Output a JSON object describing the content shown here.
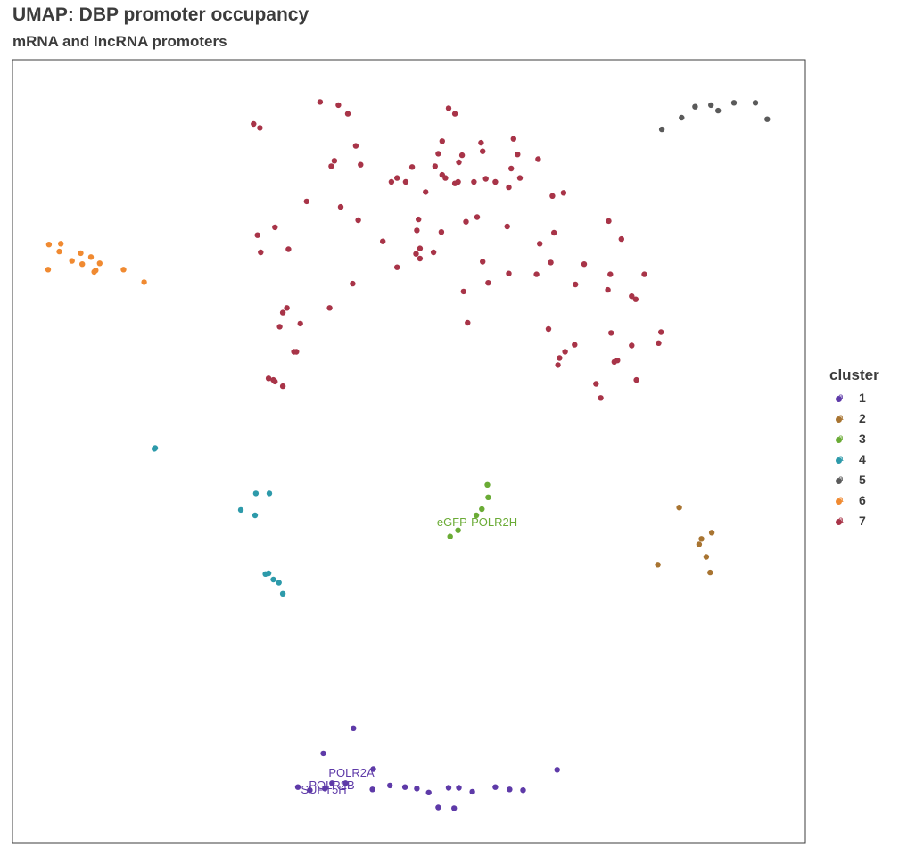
{
  "title": "UMAP: DBP promoter occupancy",
  "subtitle": "mRNA and lncRNA promoters",
  "legend": {
    "title": "cluster",
    "glyph": "a",
    "items": [
      {
        "label": "1",
        "color": "#5e3aa8"
      },
      {
        "label": "2",
        "color": "#a87431"
      },
      {
        "label": "3",
        "color": "#6aab35"
      },
      {
        "label": "4",
        "color": "#2d9aaa"
      },
      {
        "label": "5",
        "color": "#5a5a5a"
      },
      {
        "label": "6",
        "color": "#f08a31"
      },
      {
        "label": "7",
        "color": "#a83448"
      }
    ]
  },
  "chart_data": {
    "type": "scatter",
    "title": "UMAP: DBP promoter occupancy",
    "subtitle": "mRNA and lncRNA promoters",
    "xlabel": "",
    "ylabel": "",
    "axes_ticks": "none",
    "grid": false,
    "legend_position": "right",
    "xlim": [
      0,
      100
    ],
    "ylim": [
      0,
      100
    ],
    "series": [
      {
        "name": "1",
        "color": "#5e3aa8",
        "points": [
          [
            43,
            14.6
          ],
          [
            39.2,
            11.4
          ],
          [
            45.5,
            9.4
          ],
          [
            40.3,
            7.6
          ],
          [
            42,
            7.6
          ],
          [
            45.4,
            6.8
          ],
          [
            39.4,
            6.9
          ],
          [
            47.6,
            7.3
          ],
          [
            49.5,
            7.1
          ],
          [
            51,
            6.9
          ],
          [
            52.5,
            6.4
          ],
          [
            55,
            7
          ],
          [
            56.3,
            7
          ],
          [
            58,
            6.5
          ],
          [
            60.9,
            7.1
          ],
          [
            62.7,
            6.8
          ],
          [
            64.4,
            6.7
          ],
          [
            68.7,
            9.3
          ],
          [
            53.7,
            4.5
          ],
          [
            55.7,
            4.4
          ],
          [
            37.5,
            6.7
          ],
          [
            36,
            7.1
          ]
        ]
      },
      {
        "name": "2",
        "color": "#a87431"
      },
      {
        "name": "3",
        "color": "#6aab35"
      },
      {
        "name": "4",
        "color": "#2d9aaa"
      },
      {
        "name": "5",
        "color": "#5a5a5a"
      },
      {
        "name": "6",
        "color": "#f08a31"
      },
      {
        "name": "7",
        "color": "#a83448"
      }
    ],
    "clusters": [
      {
        "name": "2",
        "points": [
          [
            84.1,
            42.8
          ],
          [
            81.4,
            35.5
          ],
          [
            86.9,
            38.8
          ],
          [
            86.6,
            38.1
          ],
          [
            88.2,
            39.6
          ],
          [
            87.5,
            36.5
          ],
          [
            88,
            34.5
          ]
        ]
      },
      {
        "name": "3",
        "points": [
          [
            59.9,
            45.7
          ],
          [
            60,
            44.1
          ],
          [
            59.2,
            42.6
          ],
          [
            58.5,
            41.8
          ],
          [
            56.2,
            39.9
          ],
          [
            55.2,
            39.1
          ]
        ]
      },
      {
        "name": "4",
        "points": [
          [
            17.9,
            50.3
          ],
          [
            18,
            50.4
          ],
          [
            30.7,
            44.6
          ],
          [
            32.4,
            44.6
          ],
          [
            28.8,
            42.5
          ],
          [
            30.6,
            41.8
          ],
          [
            31.9,
            34.3
          ],
          [
            32.3,
            34.4
          ],
          [
            32.9,
            33.6
          ],
          [
            33.6,
            33.2
          ],
          [
            34.1,
            31.8
          ]
        ]
      },
      {
        "name": "5",
        "points": [
          [
            81.9,
            91.1
          ],
          [
            84.4,
            92.6
          ],
          [
            86.1,
            94
          ],
          [
            88.1,
            94.2
          ],
          [
            89,
            93.5
          ],
          [
            91,
            94.5
          ],
          [
            93.7,
            94.5
          ],
          [
            95.2,
            92.4
          ]
        ]
      },
      {
        "name": "6",
        "points": [
          [
            6.1,
            76.5
          ],
          [
            4.6,
            76.4
          ],
          [
            5.9,
            75.5
          ],
          [
            8.6,
            75.3
          ],
          [
            9.9,
            74.8
          ],
          [
            11,
            74
          ],
          [
            8.8,
            73.9
          ],
          [
            4.5,
            73.2
          ],
          [
            10.5,
            73.1
          ],
          [
            10.3,
            72.9
          ],
          [
            14,
            73.2
          ],
          [
            16.6,
            71.6
          ],
          [
            7.5,
            74.3
          ]
        ]
      },
      {
        "name": "7",
        "points": [
          [
            38.8,
            94.6
          ],
          [
            41.1,
            94.2
          ],
          [
            42.3,
            93.1
          ],
          [
            55,
            93.8
          ],
          [
            55.8,
            93.1
          ],
          [
            30.4,
            91.8
          ],
          [
            31.2,
            91.3
          ],
          [
            43.3,
            89
          ],
          [
            54.2,
            89.6
          ],
          [
            59.1,
            89.4
          ],
          [
            63.2,
            89.9
          ],
          [
            63.7,
            87.9
          ],
          [
            53.7,
            88
          ],
          [
            59.3,
            88.3
          ],
          [
            56.7,
            87.8
          ],
          [
            66.3,
            87.3
          ],
          [
            40.2,
            86.4
          ],
          [
            40.6,
            87.1
          ],
          [
            43.9,
            86.6
          ],
          [
            53.3,
            86.4
          ],
          [
            56.3,
            86.9
          ],
          [
            50.4,
            86.3
          ],
          [
            62.9,
            86.1
          ],
          [
            64,
            84.9
          ],
          [
            47.8,
            84.4
          ],
          [
            48.5,
            84.9
          ],
          [
            49.6,
            84.4
          ],
          [
            54.6,
            84.9
          ],
          [
            54.2,
            85.3
          ],
          [
            56.2,
            84.4
          ],
          [
            58.2,
            84.4
          ],
          [
            60.9,
            84.4
          ],
          [
            62.6,
            83.7
          ],
          [
            52.1,
            83.1
          ],
          [
            59.7,
            84.8
          ],
          [
            55.8,
            84.2
          ],
          [
            69.5,
            83
          ],
          [
            68.1,
            82.6
          ],
          [
            41.4,
            81.2
          ],
          [
            37.1,
            81.9
          ],
          [
            43.6,
            79.5
          ],
          [
            51.2,
            79.6
          ],
          [
            58.6,
            79.9
          ],
          [
            57.2,
            79.3
          ],
          [
            62.4,
            78.7
          ],
          [
            75.2,
            79.4
          ],
          [
            33.1,
            78.6
          ],
          [
            30.9,
            77.6
          ],
          [
            51,
            78.2
          ],
          [
            54.1,
            78
          ],
          [
            46.7,
            76.8
          ],
          [
            66.5,
            76.5
          ],
          [
            76.8,
            77.1
          ],
          [
            68.3,
            77.9
          ],
          [
            34.8,
            75.8
          ],
          [
            31.3,
            75.4
          ],
          [
            53.1,
            75.4
          ],
          [
            51.4,
            75.9
          ],
          [
            50.9,
            75.2
          ],
          [
            51.4,
            74.6
          ],
          [
            59.3,
            74.2
          ],
          [
            67.9,
            74.1
          ],
          [
            72.1,
            73.9
          ],
          [
            66.1,
            72.6
          ],
          [
            62.6,
            72.7
          ],
          [
            75.4,
            72.6
          ],
          [
            79.7,
            72.6
          ],
          [
            48.5,
            73.5
          ],
          [
            60,
            71.5
          ],
          [
            71,
            71.3
          ],
          [
            42.9,
            71.4
          ],
          [
            56.9,
            70.4
          ],
          [
            75.1,
            70.6
          ],
          [
            78.1,
            69.8
          ],
          [
            78.6,
            69.4
          ],
          [
            34.6,
            68.3
          ],
          [
            34.1,
            67.7
          ],
          [
            33.7,
            65.9
          ],
          [
            40,
            68.3
          ],
          [
            36.3,
            66.3
          ],
          [
            35.8,
            62.7
          ],
          [
            35.5,
            62.7
          ],
          [
            57.4,
            66.4
          ],
          [
            67.6,
            65.6
          ],
          [
            75.5,
            65.1
          ],
          [
            78.1,
            63.5
          ],
          [
            81.5,
            63.8
          ],
          [
            75.9,
            61.4
          ],
          [
            76.3,
            61.6
          ],
          [
            69.7,
            62.7
          ],
          [
            69,
            61.9
          ],
          [
            70.9,
            63.6
          ],
          [
            81.8,
            65.2
          ],
          [
            68.8,
            61
          ],
          [
            73.6,
            58.6
          ],
          [
            78.7,
            59.1
          ],
          [
            32.9,
            59.1
          ],
          [
            33.1,
            58.9
          ],
          [
            32.3,
            59.3
          ],
          [
            34.1,
            58.3
          ],
          [
            74.2,
            56.8
          ]
        ]
      }
    ],
    "annotations": [
      {
        "text": "POLR2A",
        "color": "#5e3aa8"
      },
      {
        "text": "POLR2B",
        "color": "#5e3aa8"
      },
      {
        "text": "SUPT5H",
        "color": "#5e3aa8"
      },
      {
        "text": "eGFP-POLR2H",
        "color": "#6aab35"
      }
    ]
  }
}
